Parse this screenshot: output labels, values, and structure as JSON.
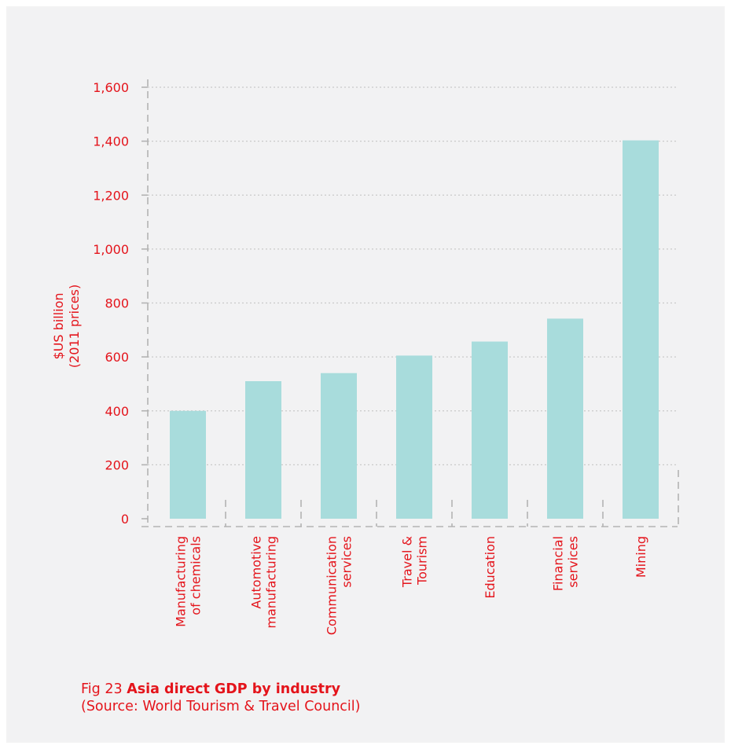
{
  "colors": {
    "background": "#f2f2f3",
    "bar": "#a8dcdc",
    "text_accent": "#e4141b",
    "grid": "#c9c9c9",
    "axis": "#b3b3b3"
  },
  "caption": {
    "figure_label": "Fig 23",
    "figure_title": "Asia direct GDP by industry",
    "source": "(Source: World Tourism & Travel Council)"
  },
  "chart_data": {
    "type": "bar",
    "categories": [
      [
        "Manufacturing",
        "of chemicals"
      ],
      [
        "Automotive",
        "manufacturing"
      ],
      [
        "Communication",
        "services"
      ],
      [
        "Travel &",
        "Tourism"
      ],
      [
        "Education"
      ],
      [
        "Financial",
        "services"
      ],
      [
        "Mining"
      ]
    ],
    "values": [
      400,
      510,
      540,
      605,
      657,
      742,
      1403
    ],
    "ylabel": [
      "$US billion",
      "(2011 prices)"
    ],
    "ylim": [
      0,
      1600
    ],
    "yticks": [
      0,
      200,
      400,
      600,
      800,
      1000,
      1200,
      1400,
      1600
    ],
    "ytick_labels": [
      "0",
      "200",
      "400",
      "600",
      "800",
      "1,000",
      "1,200",
      "1,400",
      "1,600"
    ],
    "grid": true,
    "legend": "none"
  }
}
